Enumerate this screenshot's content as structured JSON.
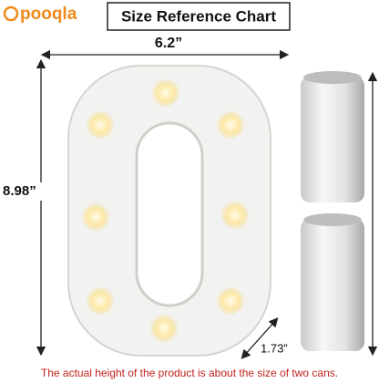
{
  "brand": "pooqla",
  "title": "Size Reference Chart",
  "dimensions": {
    "width": "6.2”",
    "height": "8.98”",
    "depth": "1.73”"
  },
  "caption": "The actual height of the product is about the size of two cans."
}
